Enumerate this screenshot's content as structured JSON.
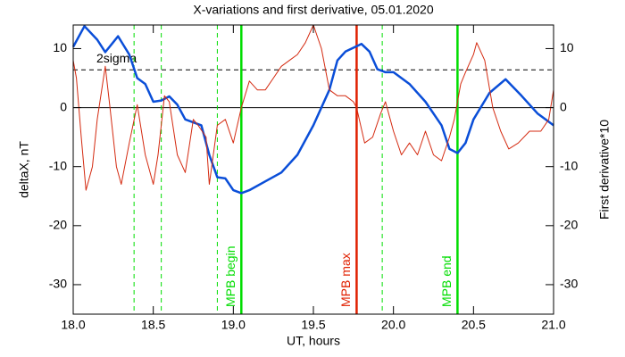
{
  "chart_data": {
    "type": "line",
    "title": "X-variations and first derivative, 05.01.2020",
    "xlabel": "UT, hours",
    "ylabel": "deltaX, nT",
    "y2label": "First derivative*10",
    "xlim": [
      18,
      21
    ],
    "xticks": [
      {
        "value": 18,
        "label": "18.0"
      },
      18.5,
      {
        "value": 19,
        "label": "19.0"
      },
      19.5,
      {
        "value": 20,
        "label": "20.0"
      },
      20.5,
      {
        "value": 21,
        "label": "21.0"
      }
    ],
    "ylim": [
      -35,
      14
    ],
    "yticks": [
      -30,
      -20,
      -10,
      0,
      10
    ],
    "y2lim": [
      -35,
      14
    ],
    "y2ticks": [
      -30,
      -20,
      -10,
      0,
      10
    ],
    "series": [
      {
        "color": "#0a4ed8",
        "x": [
          18.0,
          18.07,
          18.15,
          18.2,
          18.28,
          18.35,
          18.4,
          18.45,
          18.5,
          18.55,
          18.6,
          18.65,
          18.7,
          18.8,
          18.85,
          18.9,
          18.95,
          19.0,
          19.05,
          19.1,
          19.2,
          19.3,
          19.4,
          19.5,
          19.6,
          19.65,
          19.7,
          19.8,
          19.85,
          19.9,
          19.95,
          20.0,
          20.1,
          20.2,
          20.3,
          20.35,
          20.4,
          20.45,
          20.5,
          20.6,
          20.7,
          20.8,
          20.9,
          21.0
        ],
        "values": [
          10.3,
          13.8,
          11.5,
          9.4,
          12.1,
          9,
          5,
          4,
          1,
          1.2,
          1.9,
          0.5,
          -2,
          -3,
          -8,
          -11.8,
          -12,
          -14,
          -14.5,
          -14,
          -12.5,
          -11,
          -8,
          -3,
          3,
          8,
          9.5,
          10.8,
          9.5,
          6.5,
          6,
          6,
          4,
          1,
          -3,
          -7,
          -7.7,
          -6,
          -2,
          2.5,
          4.8,
          2,
          -1,
          -3
        ]
      },
      {
        "color": "#d42a10",
        "axis": "y2",
        "x": [
          18.0,
          18.02,
          18.05,
          18.08,
          18.12,
          18.15,
          18.2,
          18.23,
          18.27,
          18.3,
          18.35,
          18.4,
          18.45,
          18.5,
          18.53,
          18.57,
          18.6,
          18.65,
          18.7,
          18.75,
          18.78,
          18.83,
          18.85,
          18.9,
          18.95,
          19.0,
          19.05,
          19.1,
          19.15,
          19.2,
          19.25,
          19.3,
          19.35,
          19.4,
          19.45,
          19.5,
          19.55,
          19.6,
          19.65,
          19.7,
          19.75,
          19.77,
          19.82,
          19.87,
          19.92,
          19.95,
          20.0,
          20.05,
          20.1,
          20.15,
          20.2,
          20.25,
          20.3,
          20.35,
          20.38,
          20.42,
          20.45,
          20.5,
          20.52,
          20.57,
          20.62,
          20.67,
          20.72,
          20.78,
          20.85,
          20.92,
          20.97,
          21.0
        ],
        "values": [
          8,
          5,
          -5,
          -14,
          -10,
          -2,
          7,
          0,
          -10,
          -13,
          -6,
          0.5,
          -8,
          -13,
          -8,
          2,
          1,
          -8,
          -11,
          -2,
          -3,
          -5,
          -13,
          -3,
          -2,
          -6,
          0,
          4.5,
          3,
          3,
          5,
          7,
          8,
          9,
          11,
          14,
          10,
          3,
          2,
          2,
          1,
          0,
          -6,
          -5,
          -1,
          1,
          -4,
          -8,
          -6,
          -8,
          -4,
          -8,
          -9,
          -5,
          -2,
          4,
          6,
          9,
          11,
          8,
          0,
          -4,
          -7,
          -6,
          -4,
          -4,
          -2,
          3
        ]
      }
    ],
    "hlines": [
      {
        "y": 0,
        "style": "solid",
        "color": "#000000"
      },
      {
        "y": 6.4,
        "style": "dashed",
        "color": "#000000",
        "label": "2sigma"
      }
    ],
    "vlines": [
      {
        "x": 18.38,
        "style": "dashed",
        "color": "#00dd00"
      },
      {
        "x": 18.55,
        "style": "dashed",
        "color": "#00dd00"
      },
      {
        "x": 18.9,
        "style": "dashed",
        "color": "#00dd00"
      },
      {
        "x": 19.05,
        "style": "solid",
        "color": "#00dd00",
        "label": "MPB begin"
      },
      {
        "x": 19.77,
        "style": "solid",
        "color": "#e02000",
        "label": "MPB max"
      },
      {
        "x": 19.93,
        "style": "dashed",
        "color": "#00dd00"
      },
      {
        "x": 20.4,
        "style": "solid",
        "color": "#00dd00",
        "label": "MPB end"
      }
    ]
  }
}
